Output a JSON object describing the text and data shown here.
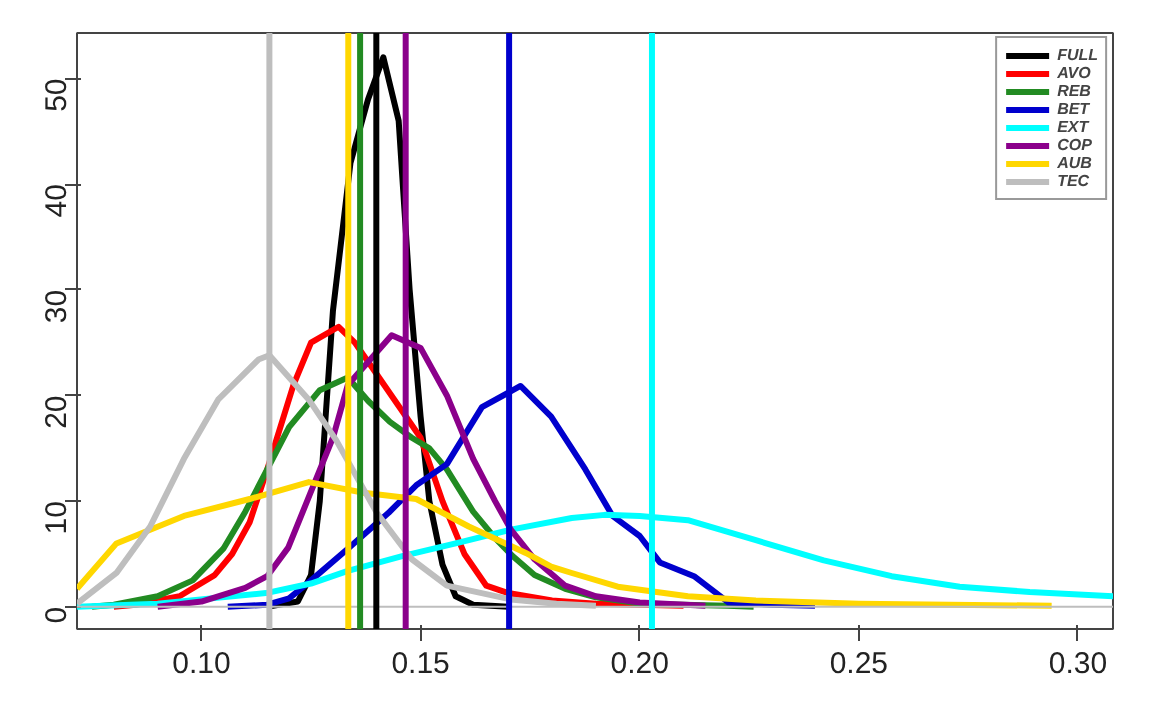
{
  "chart_data": {
    "type": "line",
    "xlim": [
      0.0716,
      0.308
    ],
    "ylim": [
      -2.1,
      54.3
    ],
    "xticks": [
      {
        "value": 0.1,
        "label": "0.10"
      },
      {
        "value": 0.15,
        "label": "0.15"
      },
      {
        "value": 0.2,
        "label": "0.20"
      },
      {
        "value": 0.25,
        "label": "0.25"
      },
      {
        "value": 0.3,
        "label": "0.30"
      }
    ],
    "yticks": [
      0,
      10,
      20,
      30,
      40,
      50
    ],
    "grid": false,
    "legend": "top right",
    "marker": "none",
    "line_style": "solid",
    "series": [
      {
        "name": "FULL",
        "color": "#000000",
        "x": [
          0.115,
          0.122,
          0.125,
          0.127,
          0.13,
          0.134,
          0.138,
          0.1415,
          0.145,
          0.1475,
          0.15,
          0.152,
          0.155,
          0.158,
          0.162,
          0.17
        ],
        "values": [
          0,
          0.5,
          3,
          10,
          28,
          42,
          48,
          52,
          46,
          30,
          18,
          10,
          4,
          1,
          0.2,
          0
        ]
      },
      {
        "name": "AVO",
        "color": "#ff0000",
        "x": [
          0.08,
          0.085,
          0.095,
          0.103,
          0.107,
          0.111,
          0.115,
          0.121,
          0.125,
          0.1313,
          0.135,
          0.14,
          0.145,
          0.15,
          0.155,
          0.16,
          0.165,
          0.17,
          0.18,
          0.19,
          0.2,
          0.21
        ],
        "values": [
          0,
          0.2,
          1,
          3,
          5,
          8,
          13,
          21,
          25,
          26.5,
          25,
          22,
          19,
          16,
          10,
          5,
          2,
          1.3,
          0.6,
          0.3,
          0.2,
          0.1
        ]
      },
      {
        "name": "REB",
        "color": "#228b22",
        "x": [
          0.075,
          0.08,
          0.09,
          0.098,
          0.105,
          0.11,
          0.115,
          0.12,
          0.127,
          0.1334,
          0.138,
          0.143,
          0.148,
          0.152,
          0.156,
          0.162,
          0.167,
          0.171,
          0.176,
          0.183,
          0.19,
          0.2,
          0.22,
          0.226
        ],
        "values": [
          0,
          0.2,
          1,
          2.5,
          5.5,
          9,
          13,
          17,
          20.5,
          21.7,
          19.5,
          17.5,
          16,
          15,
          13,
          9,
          6.5,
          4.8,
          3,
          1.7,
          0.9,
          0.3,
          0.1,
          0
        ]
      },
      {
        "name": "BET",
        "color": "#0000cd",
        "x": [
          0.106,
          0.115,
          0.12,
          0.125,
          0.1334,
          0.1427,
          0.149,
          0.156,
          0.164,
          0.1728,
          0.1798,
          0.1845,
          0.1876,
          0.1938,
          0.2,
          0.2046,
          0.2124,
          0.2203,
          0.23,
          0.24
        ],
        "values": [
          0,
          0.2,
          0.8,
          2.5,
          5.5,
          8.9,
          11.5,
          13.5,
          18.9,
          20.9,
          18,
          15,
          13,
          8.6,
          6.7,
          4.2,
          2.9,
          0.4,
          0.2,
          0.1
        ]
      },
      {
        "name": "EXT",
        "color": "#00ffff",
        "x": [
          0.0716,
          0.09,
          0.1147,
          0.125,
          0.1334,
          0.1458,
          0.158,
          0.1706,
          0.1845,
          0.192,
          0.2,
          0.211,
          0.2265,
          0.242,
          0.2575,
          0.273,
          0.289,
          0.308
        ],
        "values": [
          0,
          0.3,
          1.3,
          2.2,
          3.4,
          4.8,
          6,
          7.3,
          8.4,
          8.7,
          8.6,
          8.2,
          6.3,
          4.4,
          2.9,
          1.9,
          1.4,
          1.0
        ]
      },
      {
        "name": "COP",
        "color": "#8b008b",
        "x": [
          0.09,
          0.1,
          0.11,
          0.115,
          0.1198,
          0.1245,
          0.13,
          0.1334,
          0.1434,
          0.15,
          0.156,
          0.162,
          0.167,
          0.1706,
          0.176,
          0.183,
          0.19,
          0.2,
          0.215
        ],
        "values": [
          0,
          0.5,
          1.8,
          2.9,
          5.6,
          10.4,
          16,
          21,
          25.7,
          24.5,
          20,
          14,
          10,
          7.3,
          4.5,
          2,
          1,
          0.4,
          0.1
        ]
      },
      {
        "name": "AUB",
        "color": "#ffd700",
        "x": [
          0.0716,
          0.0806,
          0.096,
          0.111,
          0.1245,
          0.137,
          0.149,
          0.161,
          0.174,
          0.1798,
          0.1845,
          0.195,
          0.211,
          0.2265,
          0.25,
          0.294
        ],
        "values": [
          1.7,
          6,
          8.6,
          10.2,
          11.8,
          10.8,
          10.2,
          7.6,
          5.1,
          3.8,
          3.2,
          1.9,
          1,
          0.6,
          0.3,
          0.1
        ]
      },
      {
        "name": "TEC",
        "color": "#bebebe",
        "x": [
          0.0716,
          0.0806,
          0.0883,
          0.096,
          0.1038,
          0.113,
          0.1155,
          0.1245,
          0.1307,
          0.14,
          0.148,
          0.156,
          0.1706,
          0.181,
          0.19
        ],
        "values": [
          0.3,
          3.2,
          7.6,
          14,
          19.6,
          23.4,
          23.8,
          19.6,
          15.8,
          8.9,
          4.5,
          2,
          0.7,
          0.3,
          0.1
        ]
      }
    ],
    "ref_lines": [
      {
        "axis": "y",
        "value": 0,
        "color": "#bebebe"
      },
      {
        "axis": "x",
        "value": 0.1155,
        "color": "#bebebe"
      },
      {
        "axis": "x",
        "value": 0.1335,
        "color": "#ffd700"
      },
      {
        "axis": "x",
        "value": 0.1362,
        "color": "#228b22"
      },
      {
        "axis": "x",
        "value": 0.1399,
        "color": "#000000"
      },
      {
        "axis": "x",
        "value": 0.1466,
        "color": "#8b008b"
      },
      {
        "axis": "x",
        "value": 0.1702,
        "color": "#0000cd"
      },
      {
        "axis": "x",
        "value": 0.2028,
        "color": "#00ffff"
      }
    ]
  }
}
